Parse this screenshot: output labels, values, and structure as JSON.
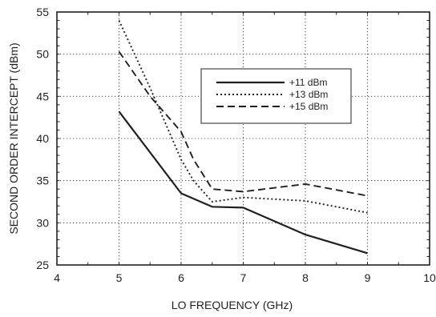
{
  "chart_data": {
    "type": "line",
    "xlabel": "LO FREQUENCY (GHz)",
    "ylabel": "SECOND ORDER INTERCEPT (dBm)",
    "xlim": [
      4,
      10
    ],
    "ylim": [
      25,
      55
    ],
    "xticks": [
      4,
      5,
      6,
      7,
      8,
      9,
      10
    ],
    "yticks": [
      25,
      30,
      35,
      40,
      45,
      50,
      55
    ],
    "grid": true,
    "legend_position": "upper-right",
    "series": [
      {
        "name": "+11 dBm",
        "style": "solid",
        "x": [
          5,
          6,
          6.5,
          7,
          8,
          9
        ],
        "y": [
          43.2,
          33.5,
          31.9,
          31.8,
          28.6,
          26.4
        ]
      },
      {
        "name": "+13 dBm",
        "style": "dotted",
        "x": [
          5,
          5.5,
          6,
          6.2,
          6.5,
          7,
          8,
          9
        ],
        "y": [
          54,
          46,
          37.5,
          35,
          32.5,
          33,
          32.6,
          31.2
        ]
      },
      {
        "name": "+15 dBm",
        "style": "dashed",
        "x": [
          5,
          5.5,
          6,
          6.2,
          6.5,
          7,
          8,
          9
        ],
        "y": [
          50.3,
          45,
          40.8,
          37.5,
          34,
          33.7,
          34.6,
          33.2
        ]
      }
    ]
  }
}
